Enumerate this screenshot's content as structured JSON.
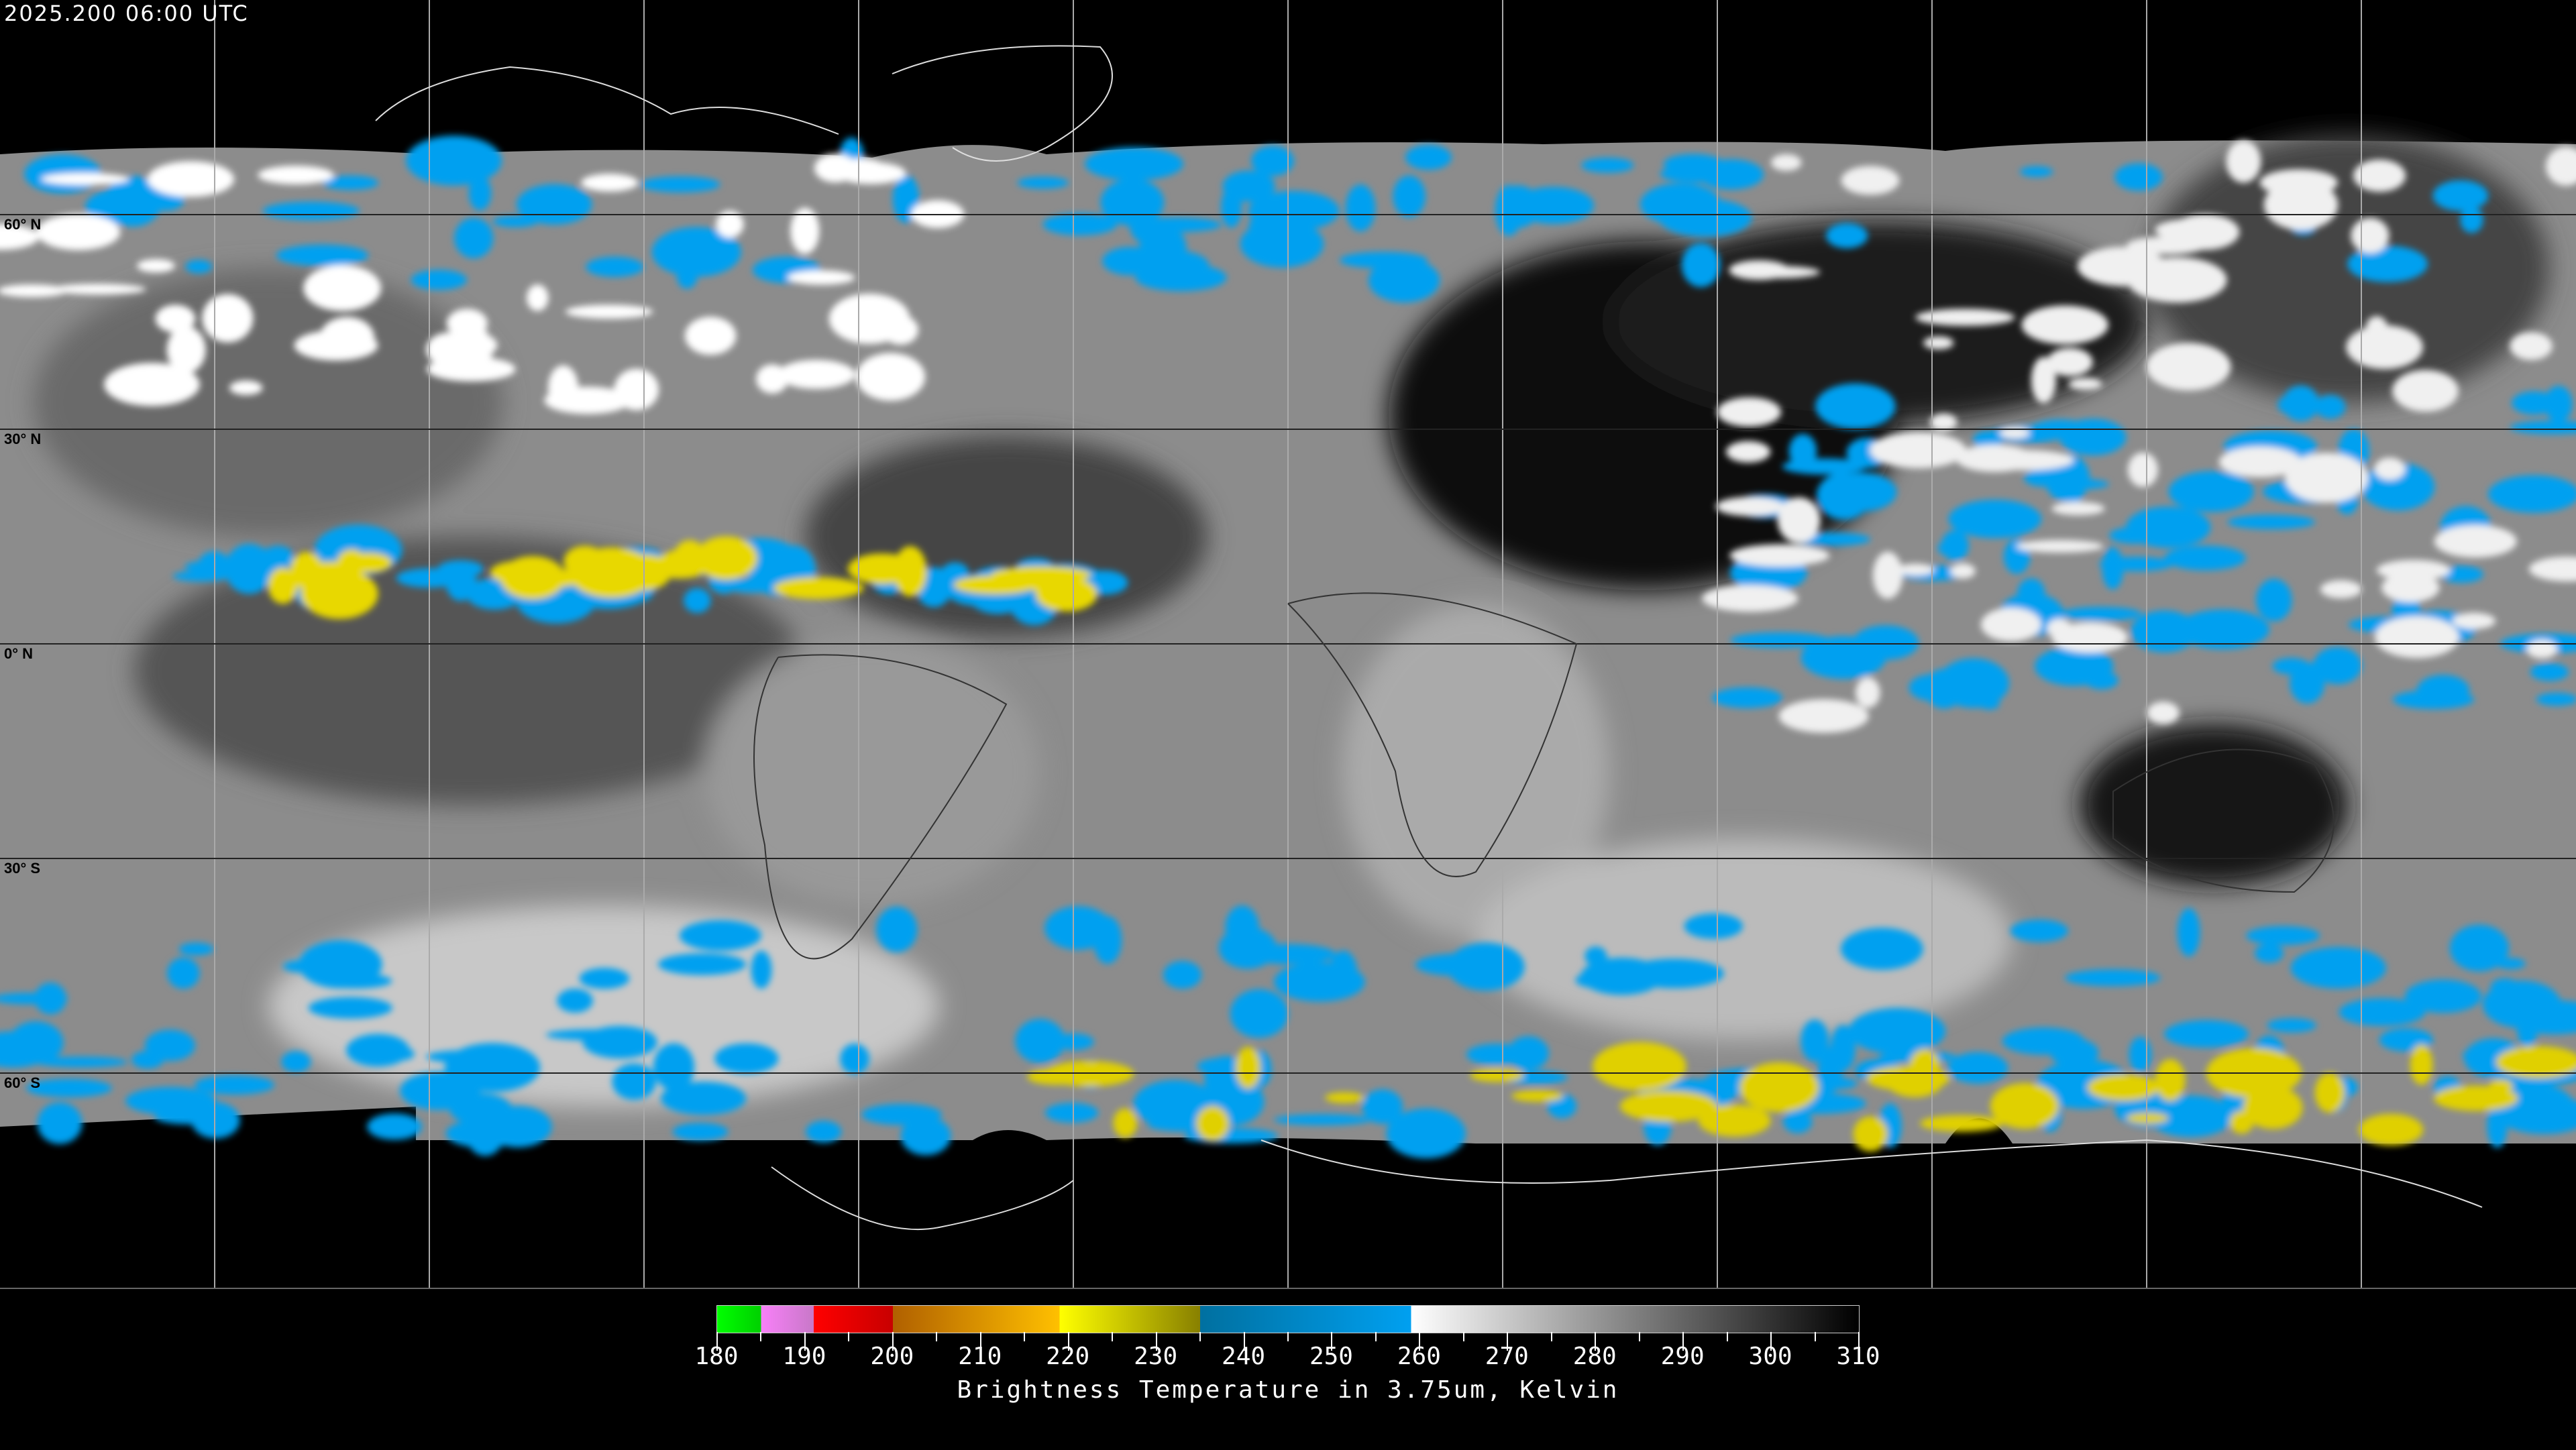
{
  "header": {
    "timestamp": "2025.200 06:00 UTC"
  },
  "map": {
    "projection": "equirectangular",
    "lat_labels": [
      "60° N",
      "30° N",
      "0° N",
      "30° S",
      "60° S"
    ],
    "grid_spacing_degrees": 30
  },
  "colorbar": {
    "title": "Brightness Temperature in 3.75um, Kelvin",
    "min": 180,
    "max": 310,
    "tick_labels": [
      "180",
      "190",
      "200",
      "210",
      "220",
      "230",
      "240",
      "250",
      "260",
      "270",
      "280",
      "290",
      "300",
      "310"
    ],
    "segments": [
      {
        "from": 180,
        "to": 185,
        "colors": [
          "#00ff00",
          "#00d000"
        ]
      },
      {
        "from": 185,
        "to": 191,
        "colors": [
          "#f880f8",
          "#c878c8"
        ]
      },
      {
        "from": 191,
        "to": 200,
        "colors": [
          "#ff0000",
          "#c80000"
        ]
      },
      {
        "from": 200,
        "to": 219,
        "colors": [
          "#b06000",
          "#ffc000"
        ]
      },
      {
        "from": 219,
        "to": 235,
        "colors": [
          "#ffff00",
          "#888000"
        ]
      },
      {
        "from": 235,
        "to": 259,
        "colors": [
          "#0070a0",
          "#00a0f0"
        ]
      },
      {
        "from": 259,
        "to": 310,
        "colors": [
          "#ffffff",
          "#000000"
        ]
      }
    ]
  }
}
